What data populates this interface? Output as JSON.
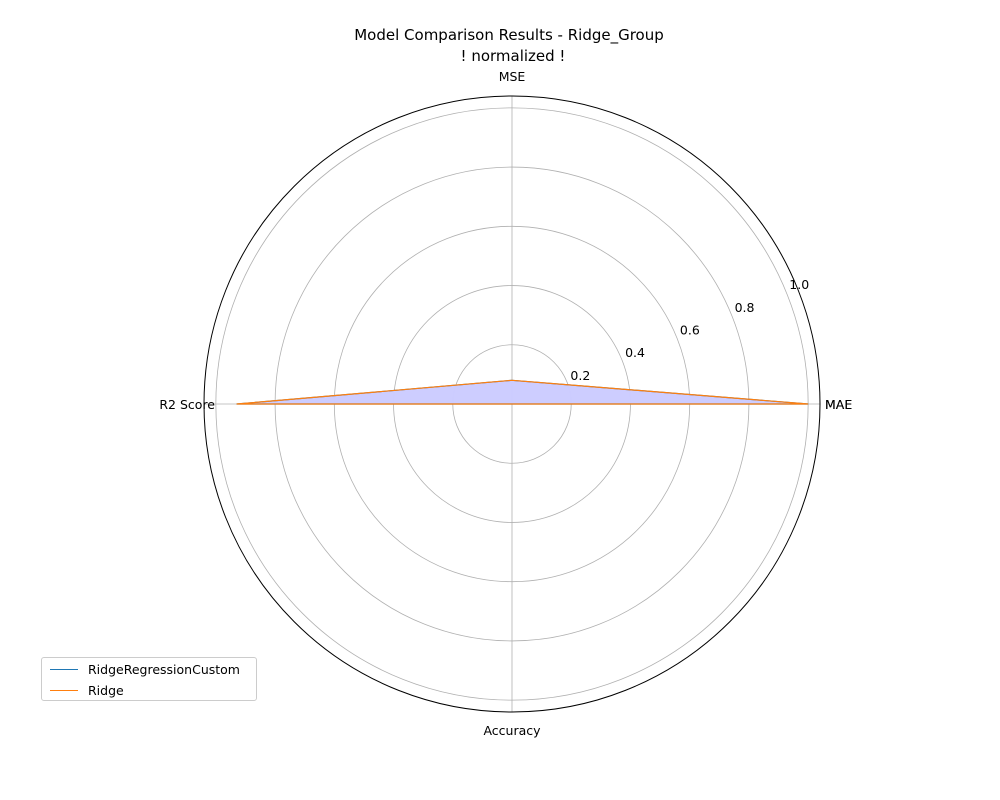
{
  "chart_data": {
    "type": "radar",
    "title": "Model Comparison Results - Ridge_Group",
    "subtitle": "! normalized !",
    "axes": [
      "MAE",
      "MSE",
      "R2 Score",
      "Accuracy",
      "MAE"
    ],
    "rticks": [
      "0.2",
      "0.4",
      "0.6",
      "0.8",
      "1.0"
    ],
    "rtick_values": [
      0.2,
      0.4,
      0.6,
      0.8,
      1.0
    ],
    "rlim": [
      0,
      1.04
    ],
    "fill_color": "#ccccff",
    "series": [
      {
        "name": "RidgeRegressionCustom",
        "color": "#1f77b4",
        "values": [
          1.0,
          0.08,
          0.93,
          0.0
        ]
      },
      {
        "name": "Ridge",
        "color": "#ff7f0e",
        "values": [
          1.0,
          0.08,
          0.93,
          0.0
        ]
      }
    ],
    "legend_position": "lower-left",
    "grid": true
  }
}
